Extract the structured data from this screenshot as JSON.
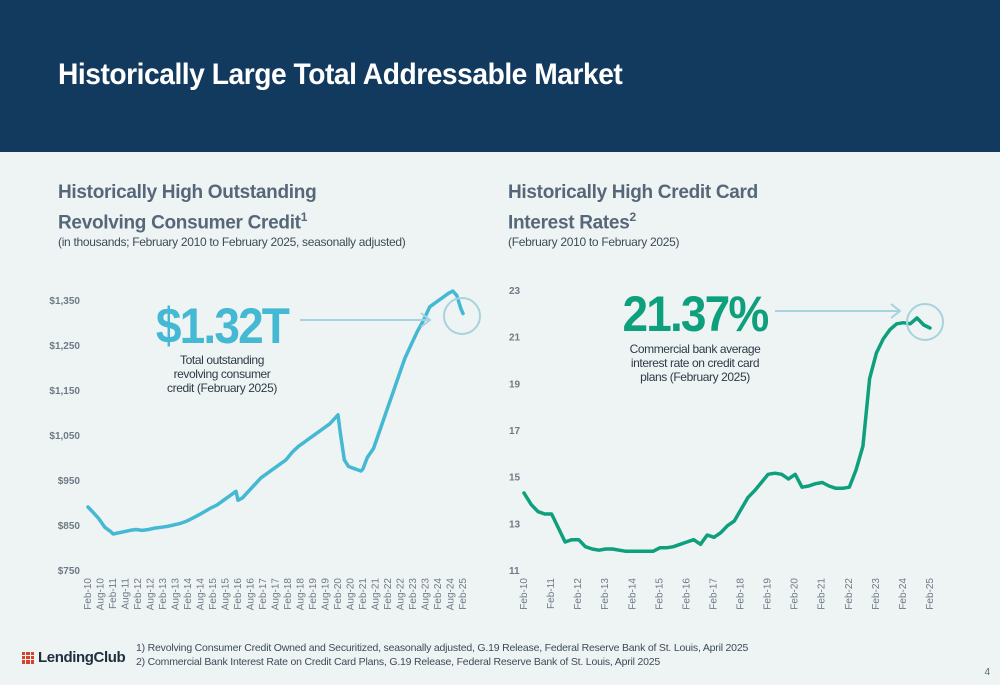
{
  "header": {
    "title": "Historically Large Total Addressable Market"
  },
  "colors": {
    "header_bg": "#123a5e",
    "left_line": "#45b8d3",
    "right_line": "#0e9f7c",
    "callout_left": "#45b8d3",
    "callout_right": "#0e9f7c"
  },
  "chart_data": [
    {
      "type": "line",
      "title_line1": "Historically High Outstanding",
      "title_line2": "Revolving Consumer Credit",
      "title_sup": "1",
      "subtitle": "(in thousands; February 2010 to February 2025, seasonally adjusted)",
      "ylim": [
        750,
        1400
      ],
      "y_ticks": [
        "$1,350",
        "$1,250",
        "$1,150",
        "$1,050",
        "$950",
        "$850",
        "$750"
      ],
      "y_tick_values": [
        1350,
        1250,
        1150,
        1050,
        950,
        850,
        750
      ],
      "x_ticks": [
        "Feb-10",
        "Aug-10",
        "Feb-11",
        "Aug-11",
        "Feb-12",
        "Aug-12",
        "Feb-13",
        "Aug-13",
        "Feb-14",
        "Aug-14",
        "Feb-15",
        "Aug-15",
        "Feb-16",
        "Aug-16",
        "Feb-17",
        "Aug-17",
        "Feb-18",
        "Aug-18",
        "Feb-19",
        "Aug-19",
        "Feb-20",
        "Aug-20",
        "Feb-21",
        "Aug-21",
        "Feb-22",
        "Aug-22",
        "Feb-23",
        "Aug-23",
        "Feb-24",
        "Aug-24",
        "Feb-25"
      ],
      "series": [
        {
          "x": [
            2010.08,
            2010.25,
            2010.5,
            2010.75,
            2011.0,
            2011.08,
            2011.25,
            2011.5,
            2011.75,
            2012.0,
            2012.25,
            2012.5,
            2012.75,
            2013.0,
            2013.25,
            2013.5,
            2013.75,
            2014.0,
            2014.25,
            2014.5,
            2014.75,
            2015.0,
            2015.08,
            2015.25,
            2015.5,
            2015.75,
            2016.0,
            2016.08,
            2016.25,
            2016.5,
            2016.75,
            2017.0,
            2017.25,
            2017.5,
            2017.75,
            2018.0,
            2018.25,
            2018.5,
            2018.75,
            2019.0,
            2019.25,
            2019.5,
            2019.75,
            2020.0,
            2020.08,
            2020.17,
            2020.33,
            2020.5,
            2020.75,
            2021.0,
            2021.08,
            2021.25,
            2021.5,
            2021.75,
            2022.0,
            2022.25,
            2022.5,
            2022.75,
            2023.0,
            2023.25,
            2023.5,
            2023.75,
            2024.0,
            2024.25,
            2024.5,
            2024.67,
            2024.83,
            2025.0,
            2025.08
          ],
          "y": [
            890,
            880,
            865,
            845,
            835,
            830,
            832,
            835,
            838,
            840,
            838,
            840,
            843,
            845,
            847,
            850,
            853,
            858,
            865,
            872,
            880,
            888,
            890,
            895,
            905,
            915,
            925,
            905,
            910,
            925,
            940,
            955,
            965,
            975,
            985,
            995,
            1012,
            1025,
            1035,
            1045,
            1055,
            1065,
            1075,
            1090,
            1095,
            1055,
            995,
            980,
            975,
            970,
            975,
            1000,
            1020,
            1060,
            1100,
            1140,
            1180,
            1220,
            1250,
            1280,
            1305,
            1335,
            1345,
            1355,
            1365,
            1370,
            1360,
            1330,
            1320
          ]
        }
      ],
      "callout": {
        "value": "$1.32T",
        "label_line1": "Total outstanding",
        "label_line2": "revolving consumer",
        "label_line3": "credit (February 2025)"
      }
    },
    {
      "type": "line",
      "title_line1": "Historically High Credit Card",
      "title_line2": "Interest Rates",
      "title_sup": "2",
      "subtitle": "(February 2010 to February 2025)",
      "ylim": [
        11,
        23
      ],
      "y_ticks": [
        "23",
        "21",
        "19",
        "17",
        "15",
        "13",
        "11"
      ],
      "y_tick_values": [
        23,
        21,
        19,
        17,
        15,
        13,
        11
      ],
      "x_ticks": [
        "Feb-10",
        "Feb-11",
        "Feb-12",
        "Feb-13",
        "Feb-14",
        "Feb-15",
        "Feb-16",
        "Feb-17",
        "Feb-18",
        "Feb-19",
        "Feb-20",
        "Feb-21",
        "Feb-22",
        "Feb-23",
        "Feb-24",
        "Feb-25"
      ],
      "series": [
        {
          "x": [
            2010.08,
            2010.35,
            2010.6,
            2010.85,
            2011.1,
            2011.35,
            2011.6,
            2011.85,
            2012.1,
            2012.35,
            2012.6,
            2012.85,
            2013.1,
            2013.35,
            2013.6,
            2013.85,
            2014.1,
            2014.35,
            2014.6,
            2014.85,
            2015.1,
            2015.35,
            2015.6,
            2015.85,
            2016.1,
            2016.35,
            2016.6,
            2016.85,
            2017.1,
            2017.35,
            2017.6,
            2017.85,
            2018.1,
            2018.35,
            2018.6,
            2018.85,
            2019.1,
            2019.35,
            2019.6,
            2019.85,
            2020.1,
            2020.35,
            2020.6,
            2020.85,
            2021.1,
            2021.35,
            2021.6,
            2021.85,
            2022.1,
            2022.35,
            2022.6,
            2022.85,
            2023.1,
            2023.35,
            2023.6,
            2023.85,
            2024.1,
            2024.35,
            2024.6,
            2024.85,
            2025.08
          ],
          "y": [
            14.3,
            13.8,
            13.5,
            13.4,
            13.4,
            12.8,
            12.2,
            12.3,
            12.3,
            12.0,
            11.9,
            11.85,
            11.9,
            11.9,
            11.85,
            11.8,
            11.8,
            11.8,
            11.8,
            11.8,
            11.95,
            11.95,
            12.0,
            12.1,
            12.2,
            12.3,
            12.1,
            12.5,
            12.4,
            12.6,
            12.9,
            13.1,
            13.6,
            14.1,
            14.4,
            14.75,
            15.1,
            15.15,
            15.1,
            14.9,
            15.1,
            14.55,
            14.6,
            14.7,
            14.75,
            14.6,
            14.5,
            14.5,
            14.55,
            15.3,
            16.3,
            19.2,
            20.3,
            20.9,
            21.3,
            21.55,
            21.6,
            21.55,
            21.8,
            21.5,
            21.37
          ]
        }
      ],
      "callout": {
        "value": "21.37%",
        "label_line1": "Commercial bank average",
        "label_line2": "interest rate on credit card",
        "label_line3": "plans (February 2025)"
      }
    }
  ],
  "footnotes": [
    "1)  Revolving Consumer Credit Owned and Securitized, seasonally adjusted, G.19 Release, Federal Reserve Bank of St. Louis, April 2025",
    "2)  Commercial Bank Interest Rate on Credit Card Plans, G.19 Release, Federal Reserve Bank of St. Louis, April 2025"
  ],
  "brand": {
    "name": "LendingClub"
  },
  "page_number": "4"
}
